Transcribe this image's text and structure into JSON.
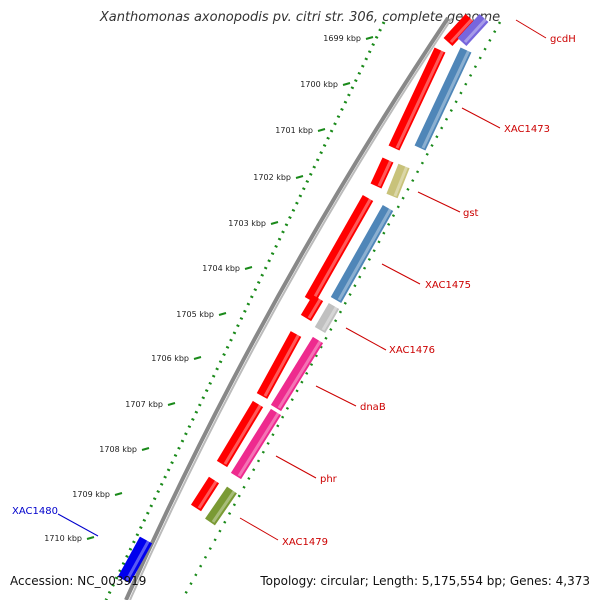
{
  "title": "Xanthomonas axonopodis pv. citri str. 306, complete genome",
  "accession": "Accession: NC_003919",
  "topology": "Topology: circular; Length: 5,175,554 bp; Genes: 4,373",
  "kbp_ticks": [
    "1699 kbp",
    "1700 kbp",
    "1701 kbp",
    "1702 kbp",
    "1703 kbp",
    "1704 kbp",
    "1705 kbp",
    "1706 kbp",
    "1707 kbp",
    "1708 kbp",
    "1709 kbp",
    "1710 kbp"
  ],
  "genes": [
    {
      "label": "gcdH",
      "color": "#cc0000",
      "strand": "inner",
      "fill": "#7766dd"
    },
    {
      "label": "XAC1473",
      "color": "#cc0000",
      "strand": "inner",
      "fill": "#4f86b8"
    },
    {
      "label": "gst",
      "color": "#cc0000",
      "strand": "inner",
      "fill": "#c8c27a"
    },
    {
      "label": "XAC1475",
      "color": "#cc0000",
      "strand": "inner",
      "fill": "#4f86b8"
    },
    {
      "label": "XAC1476",
      "color": "#cc0000",
      "strand": "inner",
      "fill": "#c0c0c0"
    },
    {
      "label": "dnaB",
      "color": "#cc0000",
      "strand": "inner",
      "fill": "#ee2a8e"
    },
    {
      "label": "phr",
      "color": "#cc0000",
      "strand": "inner",
      "fill": "#ee2a8e"
    },
    {
      "label": "XAC1479",
      "color": "#cc0000",
      "strand": "inner",
      "fill": "#7a9a34"
    },
    {
      "label": "XAC1480",
      "color": "#0000cc",
      "strand": "outer",
      "fill": "#0000ee"
    }
  ],
  "colors": {
    "cds": "#ff0000",
    "backbone": "#888888",
    "gc_skew": "#1a8a1a"
  }
}
